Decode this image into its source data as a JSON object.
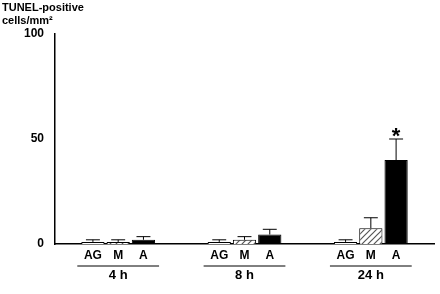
{
  "chart_data": {
    "type": "bar",
    "ylabel": "TUNEL-positive cells/mm²",
    "categories": [
      "4 h",
      "8 h",
      "24 h"
    ],
    "series": [
      {
        "name": "AG",
        "color": "#ffffff",
        "values": [
          1,
          1,
          1
        ],
        "errors": [
          1,
          1,
          1
        ]
      },
      {
        "name": "M",
        "color": "#555555",
        "values": [
          1,
          2,
          7.5
        ],
        "errors": [
          1,
          1.5,
          5
        ]
      },
      {
        "name": "A",
        "color": "#000000",
        "values": [
          2,
          4.5,
          40
        ],
        "errors": [
          1.5,
          2.5,
          10
        ]
      }
    ],
    "annotations": [
      {
        "text": "*",
        "category": "24 h",
        "series": "A"
      }
    ],
    "ylim": [
      0,
      100
    ],
    "yticks": [
      0,
      50,
      100
    ],
    "grid": false
  }
}
